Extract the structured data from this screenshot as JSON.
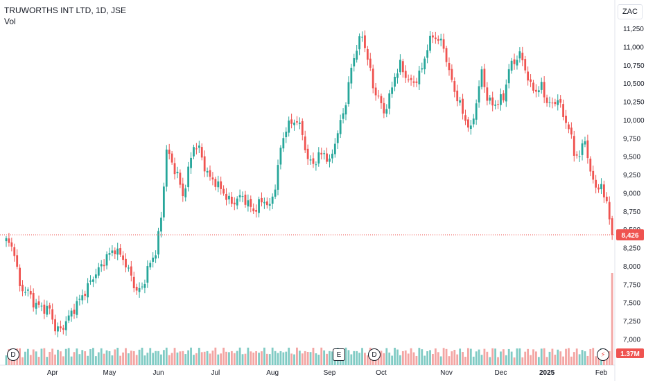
{
  "header": {
    "title": "TRUWORTHS INT LTD, 1D, JSE",
    "indicator": "Vol",
    "currency": "ZAC"
  },
  "colors": {
    "up": "#26a69a",
    "down": "#ef5350",
    "vol_up": "#80cbc4",
    "vol_down": "#f3a5a3"
  },
  "markers": [
    {
      "type": "D",
      "month_index": 0,
      "label": "D"
    },
    {
      "type": "E",
      "month_index": 6,
      "label": "E"
    },
    {
      "type": "D",
      "month_index": 7,
      "label": "D"
    }
  ],
  "chart_data": {
    "type": "candlestick",
    "price_ticks": [
      7000,
      7250,
      7500,
      7750,
      8000,
      8250,
      8500,
      8750,
      9000,
      9250,
      9500,
      9750,
      10000,
      10250,
      10500,
      10750,
      11000,
      11250
    ],
    "price_tick_labels": [
      "7,000",
      "7,250",
      "7,500",
      "7,750",
      "8,000",
      "8,250",
      "8,500",
      "8,750",
      "9,000",
      "9,250",
      "9,500",
      "9,750",
      "10,000",
      "10,250",
      "10,500",
      "10,750",
      "11,000",
      "11,250"
    ],
    "ylim": [
      6900,
      11450
    ],
    "last_price": 8426,
    "last_price_label": "8,426",
    "last_volume_label": "1.37M",
    "months": [
      "Apr",
      "May",
      "Jun",
      "Jul",
      "Aug",
      "Sep",
      "Oct",
      "Nov",
      "Dec",
      "2025",
      "Feb"
    ],
    "month_positions": [
      17,
      38,
      56,
      77,
      98,
      119,
      138,
      162,
      182,
      199,
      219
    ],
    "close_path": [
      [
        0,
        8350
      ],
      [
        3,
        8200
      ],
      [
        5,
        7700
      ],
      [
        8,
        7650
      ],
      [
        10,
        7500
      ],
      [
        13,
        7430
      ],
      [
        16,
        7400
      ],
      [
        18,
        7150
      ],
      [
        20,
        7120
      ],
      [
        23,
        7300
      ],
      [
        26,
        7480
      ],
      [
        29,
        7650
      ],
      [
        32,
        7850
      ],
      [
        35,
        8000
      ],
      [
        37,
        8130
      ],
      [
        40,
        8230
      ],
      [
        43,
        8100
      ],
      [
        46,
        7850
      ],
      [
        48,
        7650
      ],
      [
        50,
        7700
      ],
      [
        52,
        7950
      ],
      [
        55,
        8200
      ],
      [
        57,
        8650
      ],
      [
        59,
        9600
      ],
      [
        61,
        9400
      ],
      [
        63,
        9250
      ],
      [
        65,
        8950
      ],
      [
        67,
        9300
      ],
      [
        69,
        9650
      ],
      [
        71,
        9600
      ],
      [
        73,
        9350
      ],
      [
        75,
        9200
      ],
      [
        77,
        9150
      ],
      [
        79,
        9050
      ],
      [
        81,
        8950
      ],
      [
        83,
        8850
      ],
      [
        85,
        8920
      ],
      [
        87,
        8950
      ],
      [
        89,
        8850
      ],
      [
        91,
        8750
      ],
      [
        93,
        8850
      ],
      [
        95,
        8900
      ],
      [
        97,
        8800
      ],
      [
        99,
        9100
      ],
      [
        101,
        9600
      ],
      [
        103,
        9900
      ],
      [
        105,
        9950
      ],
      [
        107,
        10000
      ],
      [
        109,
        9800
      ],
      [
        111,
        9450
      ],
      [
        113,
        9400
      ],
      [
        115,
        9500
      ],
      [
        117,
        9550
      ],
      [
        119,
        9400
      ],
      [
        121,
        9700
      ],
      [
        123,
        9950
      ],
      [
        125,
        10250
      ],
      [
        127,
        10700
      ],
      [
        129,
        11000
      ],
      [
        131,
        11150
      ],
      [
        133,
        10850
      ],
      [
        135,
        10450
      ],
      [
        137,
        10300
      ],
      [
        139,
        10100
      ],
      [
        141,
        10300
      ],
      [
        143,
        10600
      ],
      [
        145,
        10750
      ],
      [
        147,
        10600
      ],
      [
        149,
        10500
      ],
      [
        151,
        10550
      ],
      [
        153,
        10700
      ],
      [
        155,
        11000
      ],
      [
        157,
        11150
      ],
      [
        159,
        11100
      ],
      [
        161,
        11000
      ],
      [
        163,
        10650
      ],
      [
        165,
        10400
      ],
      [
        167,
        10200
      ],
      [
        169,
        10000
      ],
      [
        171,
        9850
      ],
      [
        173,
        10250
      ],
      [
        175,
        10650
      ],
      [
        177,
        10300
      ],
      [
        179,
        10200
      ],
      [
        181,
        10250
      ],
      [
        183,
        10300
      ],
      [
        185,
        10700
      ],
      [
        187,
        10800
      ],
      [
        189,
        10900
      ],
      [
        191,
        10700
      ],
      [
        193,
        10450
      ],
      [
        195,
        10400
      ],
      [
        197,
        10450
      ],
      [
        199,
        10250
      ],
      [
        201,
        10200
      ],
      [
        203,
        10300
      ],
      [
        205,
        10050
      ],
      [
        207,
        9900
      ],
      [
        209,
        9550
      ],
      [
        211,
        9500
      ],
      [
        213,
        9750
      ],
      [
        215,
        9250
      ],
      [
        217,
        9100
      ],
      [
        219,
        9050
      ],
      [
        221,
        8900
      ],
      [
        222,
        8650
      ],
      [
        223,
        8426
      ]
    ]
  }
}
